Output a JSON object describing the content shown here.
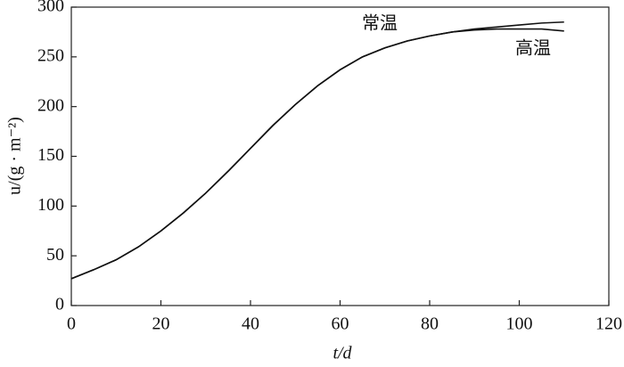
{
  "chart_data": {
    "type": "line",
    "x_label": "t/d",
    "y_label": "u/(g · m⁻²)",
    "x": [
      0,
      5,
      10,
      15,
      20,
      25,
      30,
      35,
      40,
      45,
      50,
      55,
      60,
      65,
      70,
      75,
      80,
      85,
      90,
      95,
      100,
      105,
      110
    ],
    "series": [
      {
        "name": "常温",
        "color": "#111111",
        "values": [
          27,
          36,
          46,
          59,
          75,
          93,
          113,
          135,
          158,
          181,
          202,
          221,
          237,
          250,
          259,
          266,
          271,
          275,
          278,
          280,
          282,
          284,
          285
        ]
      },
      {
        "name": "高温",
        "color": "#111111",
        "values": [
          27,
          36,
          46,
          59,
          75,
          93,
          113,
          135,
          158,
          181,
          202,
          221,
          237,
          250,
          259,
          266,
          271,
          275,
          277,
          278,
          278,
          278,
          276
        ]
      }
    ],
    "xlim": [
      0,
      120
    ],
    "xticks": [
      0,
      20,
      40,
      60,
      80,
      100,
      120
    ],
    "ylim": [
      0,
      300
    ],
    "yticks": [
      0,
      50,
      100,
      150,
      200,
      250,
      300
    ]
  }
}
